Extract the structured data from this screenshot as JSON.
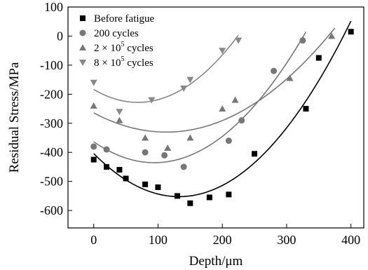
{
  "chart_data": {
    "type": "scatter",
    "xlabel": "Depth/μm",
    "ylabel": "Residual Stress/MPa",
    "xlim": [
      -40,
      420
    ],
    "ylim": [
      -660,
      100
    ],
    "xticks": [
      0,
      100,
      200,
      300,
      400
    ],
    "yticks": [
      100,
      0,
      -100,
      -200,
      -300,
      -400,
      -500,
      -600
    ],
    "grid": false,
    "legend_position": "top-left",
    "series": [
      {
        "name": "Before fatigue",
        "marker": "square",
        "color": "#000000",
        "fit_color": "#000000",
        "x": [
          0,
          20,
          40,
          50,
          80,
          100,
          130,
          150,
          180,
          210,
          250,
          330,
          350,
          400
        ],
        "y": [
          -425,
          -450,
          -460,
          -490,
          -510,
          -520,
          -550,
          -575,
          -555,
          -545,
          -405,
          -250,
          -75,
          15
        ],
        "fit": {
          "x": [
            0,
            400
          ],
          "y": [
            -410,
            60
          ]
        }
      },
      {
        "name": "200 cycles",
        "marker": "circle",
        "color": "#777777",
        "fit_color": "#777777",
        "x": [
          0,
          20,
          80,
          110,
          140,
          210,
          230,
          280,
          325
        ],
        "y": [
          -380,
          -390,
          -400,
          -410,
          -450,
          -360,
          -290,
          -120,
          -15
        ],
        "fit": {
          "x": [
            0,
            330
          ],
          "y": [
            -360,
            0
          ]
        }
      },
      {
        "name": "2 × 10^5 cycles",
        "legend_parts": [
          "2",
          "× 10",
          "5",
          "cycles"
        ],
        "marker": "triangle-up",
        "color": "#777777",
        "fit_color": "#777777",
        "x": [
          0,
          40,
          80,
          115,
          150,
          200,
          220,
          305,
          370
        ],
        "y": [
          -240,
          -290,
          -350,
          -385,
          -350,
          -250,
          -220,
          -145,
          0
        ],
        "fit": {
          "x": [
            0,
            375
          ],
          "y": [
            -265,
            5
          ]
        }
      },
      {
        "name": "8 × 10^5 cycles",
        "legend_parts": [
          "8",
          "× 10",
          "5",
          "cycles"
        ],
        "marker": "triangle-down",
        "color": "#888888",
        "fit_color": "#888888",
        "x": [
          0,
          40,
          90,
          140,
          150,
          200,
          225
        ],
        "y": [
          -160,
          -260,
          -220,
          -180,
          -150,
          -50,
          -15
        ],
        "fit": {
          "x": [
            0,
            225
          ],
          "y": [
            -185,
            20
          ]
        }
      }
    ]
  }
}
